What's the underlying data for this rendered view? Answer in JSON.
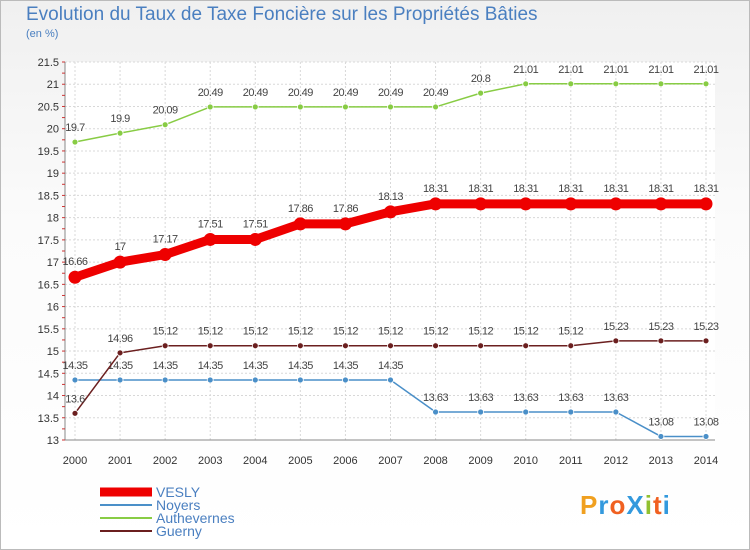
{
  "title": "Evolution du Taux de Taxe Foncière sur les Propriétés Bâties",
  "unit_label": "(en %)",
  "logo_text": "ProXiti",
  "logo_colors": [
    "#f0a020",
    "#3399dd",
    "#f06020",
    "#3399dd",
    "#90c030",
    "#f06020",
    "#3399dd"
  ],
  "chart_data": {
    "type": "line",
    "title": "Evolution du Taux de Taxe Foncière sur les Propriétés Bâties",
    "ylabel": "(en %)",
    "xlabel": "",
    "ylim": [
      13,
      21.5
    ],
    "yticks": [
      "13",
      "13.5",
      "14",
      "14.5",
      "15",
      "15.5",
      "16",
      "16.5",
      "17",
      "17.5",
      "18",
      "18.5",
      "19",
      "19.5",
      "20",
      "20.5",
      "21",
      "21.5"
    ],
    "x": [
      "2000",
      "2001",
      "2002",
      "2003",
      "2004",
      "2005",
      "2006",
      "2007",
      "2008",
      "2009",
      "2010",
      "2011",
      "2012",
      "2013",
      "2014"
    ],
    "grid": true,
    "legend": "bottom-left",
    "series": [
      {
        "name": "VESLY",
        "color": "#ee0000",
        "values": [
          16.66,
          17,
          17.17,
          17.51,
          17.51,
          17.86,
          17.86,
          18.13,
          18.31,
          18.31,
          18.31,
          18.31,
          18.31,
          18.31,
          18.31
        ],
        "labels": [
          "16.66",
          "17",
          "17.17",
          "17.51",
          "17.51",
          "17.86",
          "17.86",
          "18.13",
          "18.31",
          "18.31",
          "18.31",
          "18.31",
          "18.31",
          "18.31",
          "18.31"
        ]
      },
      {
        "name": "Noyers",
        "color": "#4a8fc8",
        "values": [
          14.35,
          14.35,
          14.35,
          14.35,
          14.35,
          14.35,
          14.35,
          14.35,
          13.63,
          13.63,
          13.63,
          13.63,
          13.63,
          13.08,
          13.08
        ],
        "labels": [
          "14.35",
          "14.35",
          "14.35",
          "14.35",
          "14.35",
          "14.35",
          "14.35",
          "14.35",
          "13.63",
          "13.63",
          "13.63",
          "13.63",
          "13.63",
          "13.08",
          "13.08"
        ]
      },
      {
        "name": "Authevernes",
        "color": "#88cc44",
        "values": [
          19.7,
          19.9,
          20.09,
          20.49,
          20.49,
          20.49,
          20.49,
          20.49,
          20.49,
          20.8,
          21.01,
          21.01,
          21.01,
          21.01,
          21.01
        ],
        "labels": [
          "19.7",
          "19.9",
          "20.09",
          "20.49",
          "20.49",
          "20.49",
          "20.49",
          "20.49",
          "20.49",
          "20.8",
          "21.01",
          "21.01",
          "21.01",
          "21.01",
          "21.01"
        ]
      },
      {
        "name": "Guerny",
        "color": "#6b1f1f",
        "values": [
          13.6,
          14.96,
          15.12,
          15.12,
          15.12,
          15.12,
          15.12,
          15.12,
          15.12,
          15.12,
          15.12,
          15.12,
          15.23,
          15.23,
          15.23
        ],
        "labels": [
          "13.6",
          "14.96",
          "15.12",
          "15.12",
          "15.12",
          "15.12",
          "15.12",
          "15.12",
          "15.12",
          "15.12",
          "15.12",
          "15.12",
          "15.23",
          "15.23",
          "15.23"
        ]
      }
    ]
  }
}
